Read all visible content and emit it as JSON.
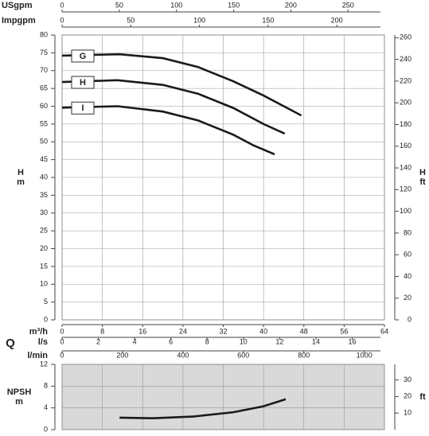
{
  "chart_data": [
    {
      "type": "line",
      "x_label": "m³/h",
      "q_label": "Q",
      "y_label": [
        "H",
        "m"
      ],
      "y2_label": [
        "H",
        "ft"
      ],
      "xlim": [
        0,
        64
      ],
      "xticks": [
        0,
        8,
        16,
        24,
        32,
        40,
        48,
        56,
        64
      ],
      "ylim": [
        0,
        80
      ],
      "yticks": [
        0,
        5,
        10,
        15,
        20,
        25,
        30,
        35,
        40,
        45,
        50,
        55,
        60,
        65,
        70,
        75,
        80
      ],
      "y2lim": [
        0,
        80
      ],
      "y2ticks": [
        {
          "value": 0,
          "label": "0"
        },
        {
          "value": 6.096,
          "label": "20"
        },
        {
          "value": 12.192,
          "label": "40"
        },
        {
          "value": 18.288,
          "label": "60"
        },
        {
          "value": 24.384,
          "label": "80"
        },
        {
          "value": 30.48,
          "label": "100"
        },
        {
          "value": 36.576,
          "label": "120"
        },
        {
          "value": 42.672,
          "label": "140"
        },
        {
          "value": 48.768,
          "label": "160"
        },
        {
          "value": 54.864,
          "label": "180"
        },
        {
          "value": 60.96,
          "label": "200"
        },
        {
          "value": 67.056,
          "label": "220"
        },
        {
          "value": 73.152,
          "label": "240"
        },
        {
          "value": 79.248,
          "label": "260"
        }
      ],
      "extra_x_axes": [
        {
          "label": "USgpm",
          "position": "top",
          "ticks": [
            {
              "value": 0,
              "label": "0"
            },
            {
              "value": 11.36,
              "label": "50"
            },
            {
              "value": 22.71,
              "label": "100"
            },
            {
              "value": 34.07,
              "label": "150"
            },
            {
              "value": 45.42,
              "label": "200"
            },
            {
              "value": 56.78,
              "label": "250"
            }
          ]
        },
        {
          "label": "Impgpm",
          "position": "top",
          "ticks": [
            {
              "value": 0,
              "label": "0"
            },
            {
              "value": 13.64,
              "label": "50"
            },
            {
              "value": 27.28,
              "label": "100"
            },
            {
              "value": 40.92,
              "label": "150"
            },
            {
              "value": 54.55,
              "label": "200"
            }
          ]
        },
        {
          "label": "l/s",
          "position": "bottom",
          "ticks": [
            {
              "value": 0,
              "label": "0"
            },
            {
              "value": 7.2,
              "label": "2"
            },
            {
              "value": 14.4,
              "label": "4"
            },
            {
              "value": 21.6,
              "label": "6"
            },
            {
              "value": 28.8,
              "label": "8"
            },
            {
              "value": 36,
              "label": "10"
            },
            {
              "value": 43.2,
              "label": "12"
            },
            {
              "value": 50.4,
              "label": "14"
            },
            {
              "value": 57.6,
              "label": "16"
            }
          ]
        },
        {
          "label": "l/min",
          "position": "bottom",
          "ticks": [
            {
              "value": 0,
              "label": "0"
            },
            {
              "value": 12,
              "label": "200"
            },
            {
              "value": 24,
              "label": "400"
            },
            {
              "value": 36,
              "label": "600"
            },
            {
              "value": 48,
              "label": "800"
            },
            {
              "value": 60,
              "label": "1000"
            }
          ]
        }
      ],
      "grid": true,
      "series": [
        {
          "name": "G",
          "color": "#1a1a1a",
          "x": [
            0,
            11.4,
            20,
            27,
            34,
            40,
            47.5
          ],
          "values": [
            74.2,
            74.6,
            73.5,
            71,
            67,
            63,
            57.4
          ]
        },
        {
          "name": "H",
          "color": "#1a1a1a",
          "x": [
            0,
            11,
            20,
            27,
            34,
            40,
            44.2
          ],
          "values": [
            66.8,
            67.3,
            66,
            63.5,
            59.5,
            55,
            52.3
          ]
        },
        {
          "name": "I",
          "color": "#1a1a1a",
          "x": [
            0,
            11,
            20,
            27,
            34,
            38,
            42.2
          ],
          "values": [
            59.6,
            60,
            58.5,
            56,
            52,
            49,
            46.5
          ]
        }
      ]
    },
    {
      "type": "line",
      "y_label": [
        "NPSH",
        "m"
      ],
      "y2_label": [
        "ft"
      ],
      "xlim": [
        0,
        64
      ],
      "ylim": [
        0,
        12
      ],
      "yticks": [
        0,
        4,
        8,
        12
      ],
      "y2lim": [
        0,
        12
      ],
      "y2ticks": [
        {
          "value": 3.048,
          "label": "10"
        },
        {
          "value": 6.096,
          "label": "20"
        },
        {
          "value": 9.144,
          "label": "30"
        }
      ],
      "grid": true,
      "series": [
        {
          "color": "#1a1a1a",
          "x": [
            11.4,
            18,
            26,
            34,
            40,
            44.4
          ],
          "values": [
            2.2,
            2.1,
            2.4,
            3.2,
            4.3,
            5.6
          ]
        }
      ]
    }
  ]
}
